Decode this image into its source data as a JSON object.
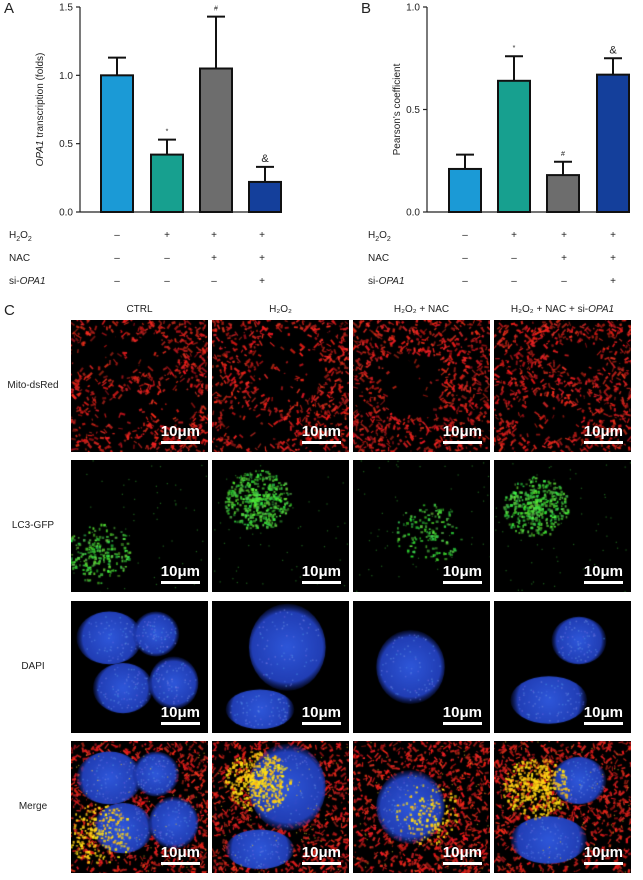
{
  "panels": {
    "a": "A",
    "b": "B",
    "c": "C"
  },
  "chart_data": [
    {
      "type": "bar",
      "panel": "A",
      "ylabel_italic": "OPA1",
      "ylabel_rest": " transcription (folds)",
      "ylim": [
        0,
        1.5
      ],
      "yticks": [
        "0.0",
        "0.5",
        "1.0",
        "1.5"
      ],
      "bars": [
        {
          "value": 1.0,
          "error": 0.13,
          "color": "#1b9ad6",
          "mark": ""
        },
        {
          "value": 0.42,
          "error": 0.11,
          "color": "#17a08f",
          "mark": "*"
        },
        {
          "value": 1.05,
          "error": 0.38,
          "color": "#6d6d6d",
          "mark": "#"
        },
        {
          "value": 0.22,
          "error": 0.11,
          "color": "#143f9b",
          "mark": "&"
        }
      ]
    },
    {
      "type": "bar",
      "panel": "B",
      "ylabel": "Pearson's coefficient",
      "ylim": [
        0,
        1.0
      ],
      "yticks": [
        "0.0",
        "0.5",
        "1.0"
      ],
      "bars": [
        {
          "value": 0.21,
          "error": 0.07,
          "color": "#1b9ad6",
          "mark": ""
        },
        {
          "value": 0.64,
          "error": 0.12,
          "color": "#17a08f",
          "mark": "*"
        },
        {
          "value": 0.18,
          "error": 0.065,
          "color": "#6d6d6d",
          "mark": "#"
        },
        {
          "value": 0.67,
          "error": 0.08,
          "color": "#143f9b",
          "mark": "&"
        }
      ]
    }
  ],
  "treatments": {
    "h2o2": {
      "label": "H",
      "sub": "2",
      "tail": "O",
      "sub2": "2",
      "values": [
        "–",
        "+",
        "+",
        "+"
      ]
    },
    "nac": {
      "label": "NAC",
      "values": [
        "–",
        "–",
        "+",
        "+"
      ]
    },
    "siopa1": {
      "label_prefix": "si-",
      "label_italic": "OPA1",
      "values": [
        "–",
        "–",
        "–",
        "+"
      ]
    }
  },
  "micrographs": {
    "columns": [
      {
        "text": "CTRL"
      },
      {
        "text": "H₂O₂"
      },
      {
        "text": "H₂O₂ + NAC"
      },
      {
        "text": "H₂O₂ + NAC + si-",
        "italic": "OPA1"
      }
    ],
    "rows": [
      "Mito-dsRed",
      "LC3-GFP",
      "DAPI",
      "Merge"
    ],
    "scalebar": "10μm",
    "channel_colors": {
      "red": "#e21b1b",
      "green": "#36c93a",
      "blue": "#2b4fc8",
      "yellow": "#f3c31a"
    }
  }
}
